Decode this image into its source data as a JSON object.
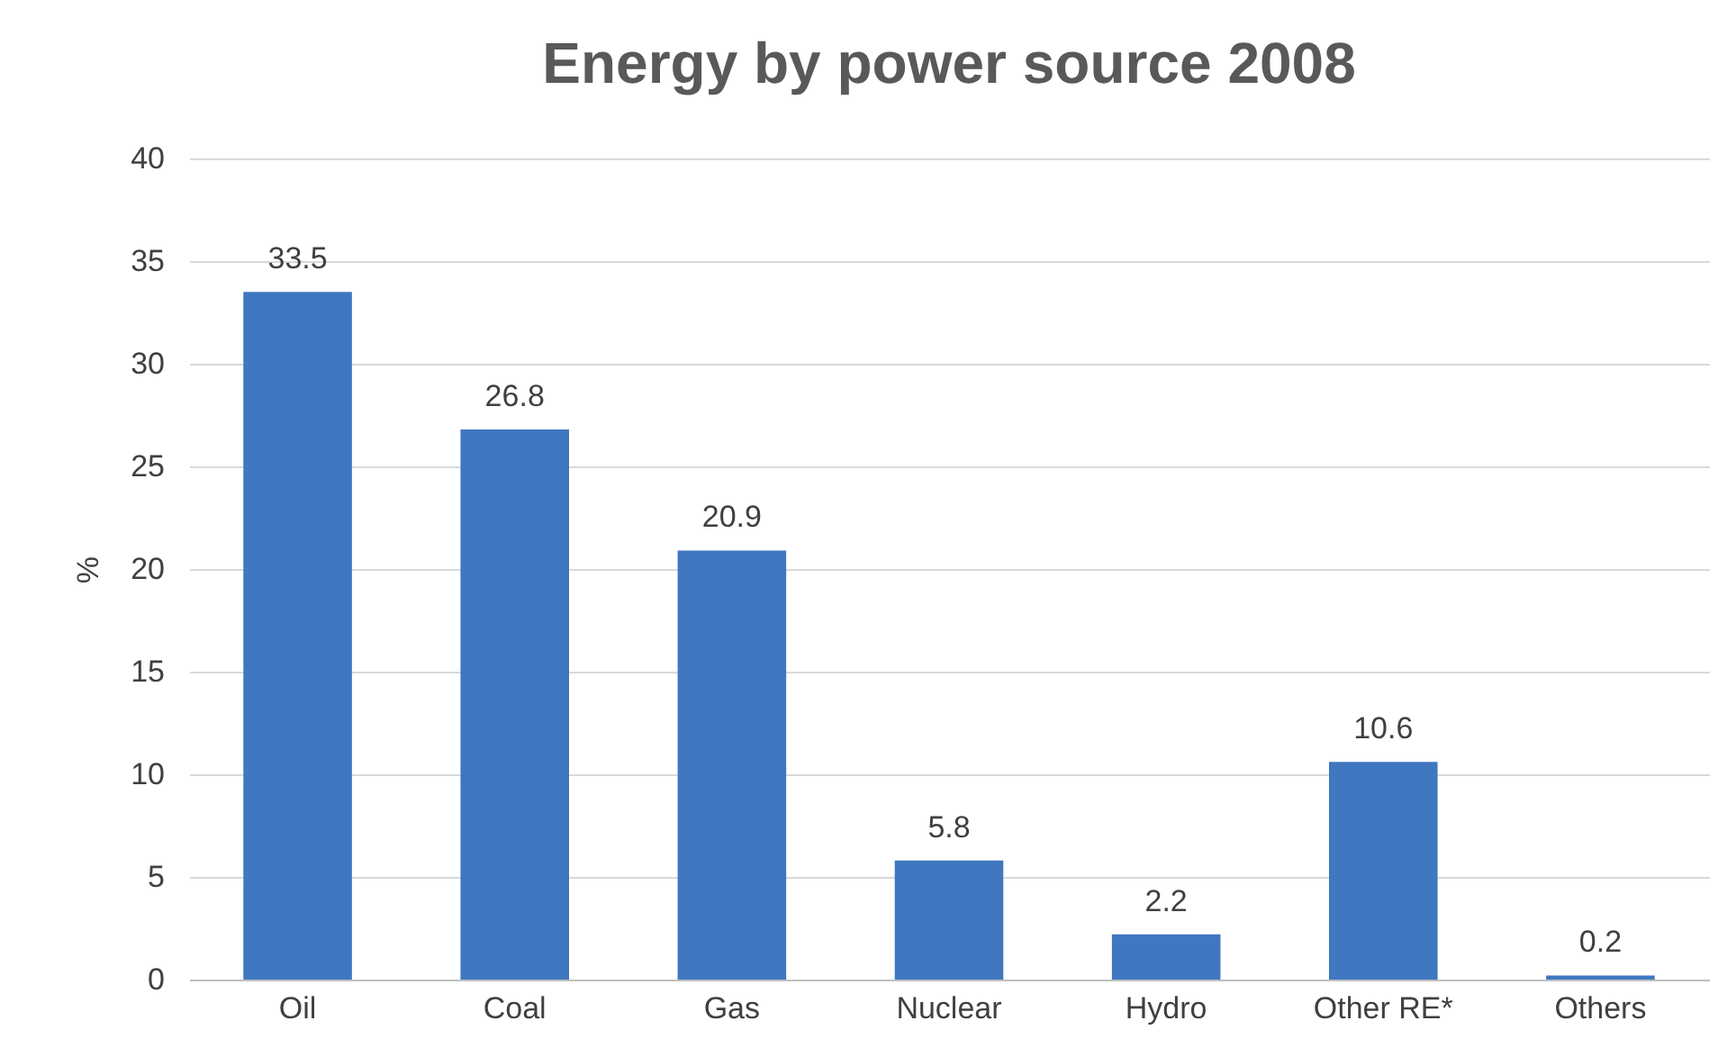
{
  "chart_data": {
    "type": "bar",
    "title": "Energy by power source 2008",
    "ylabel": "%",
    "categories": [
      "Oil",
      "Coal",
      "Gas",
      "Nuclear",
      "Hydro",
      "Other RE*",
      "Others"
    ],
    "values": [
      33.5,
      26.8,
      20.9,
      5.8,
      2.2,
      10.6,
      0.2
    ],
    "color": "#3f77c0",
    "ylim": [
      0,
      40
    ],
    "yticks": [
      0,
      5,
      10,
      15,
      20,
      25,
      30,
      35,
      40
    ],
    "grid": "y",
    "data_labels": true
  }
}
